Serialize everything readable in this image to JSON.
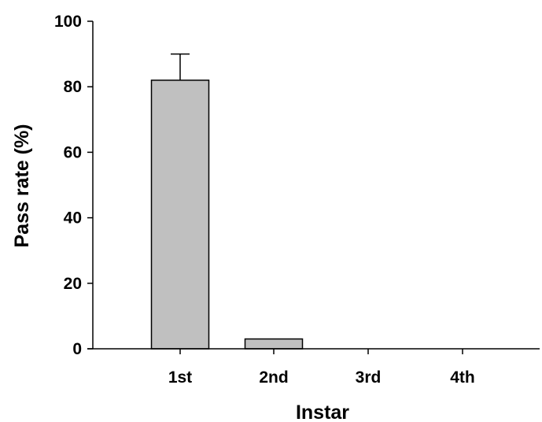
{
  "chart_data": {
    "type": "bar",
    "title": "",
    "xlabel": "Instar",
    "ylabel": "Pass rate (%)",
    "categories": [
      "1st",
      "2nd",
      "3rd",
      "4th"
    ],
    "values": [
      82,
      3,
      0,
      0
    ],
    "error_upper": [
      8,
      0,
      0,
      0
    ],
    "ylim": [
      0,
      100
    ],
    "yticks": [
      0,
      20,
      40,
      60,
      80,
      100
    ],
    "ytick_labels": [
      "0",
      "20",
      "40",
      "60",
      "80",
      "100"
    ],
    "grid": false,
    "legend": "none",
    "colors": {
      "bar_fill": "#c0c0c0",
      "bar_stroke": "#000000",
      "axis": "#000000",
      "background": "#ffffff"
    }
  }
}
